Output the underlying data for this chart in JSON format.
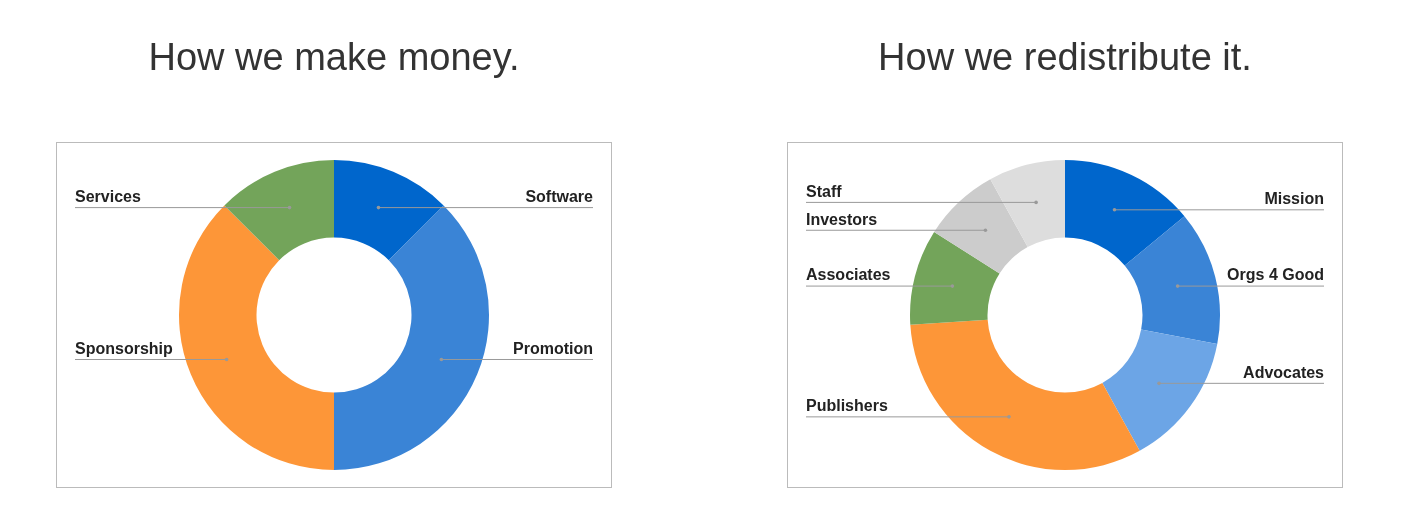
{
  "chart_data": [
    {
      "type": "donut",
      "title": "How we make money.",
      "categories": [
        "Software",
        "Promotion",
        "Sponsorship",
        "Services"
      ],
      "values": [
        12.5,
        37.5,
        37.5,
        12.5
      ],
      "colors": [
        "#0066cc",
        "#3a84d6",
        "#fd9638",
        "#73a45a"
      ]
    },
    {
      "type": "donut",
      "title": "How we redistribute it.",
      "categories": [
        "Mission",
        "Orgs 4 Good",
        "Advocates",
        "Publishers",
        "Associates",
        "Investors",
        "Staff"
      ],
      "values": [
        14,
        14,
        14,
        32,
        10,
        8,
        8
      ],
      "colors": [
        "#0066cc",
        "#3a84d6",
        "#6ca5e6",
        "#fd9638",
        "#73a45a",
        "#cccccc",
        "#dddddd"
      ]
    }
  ]
}
